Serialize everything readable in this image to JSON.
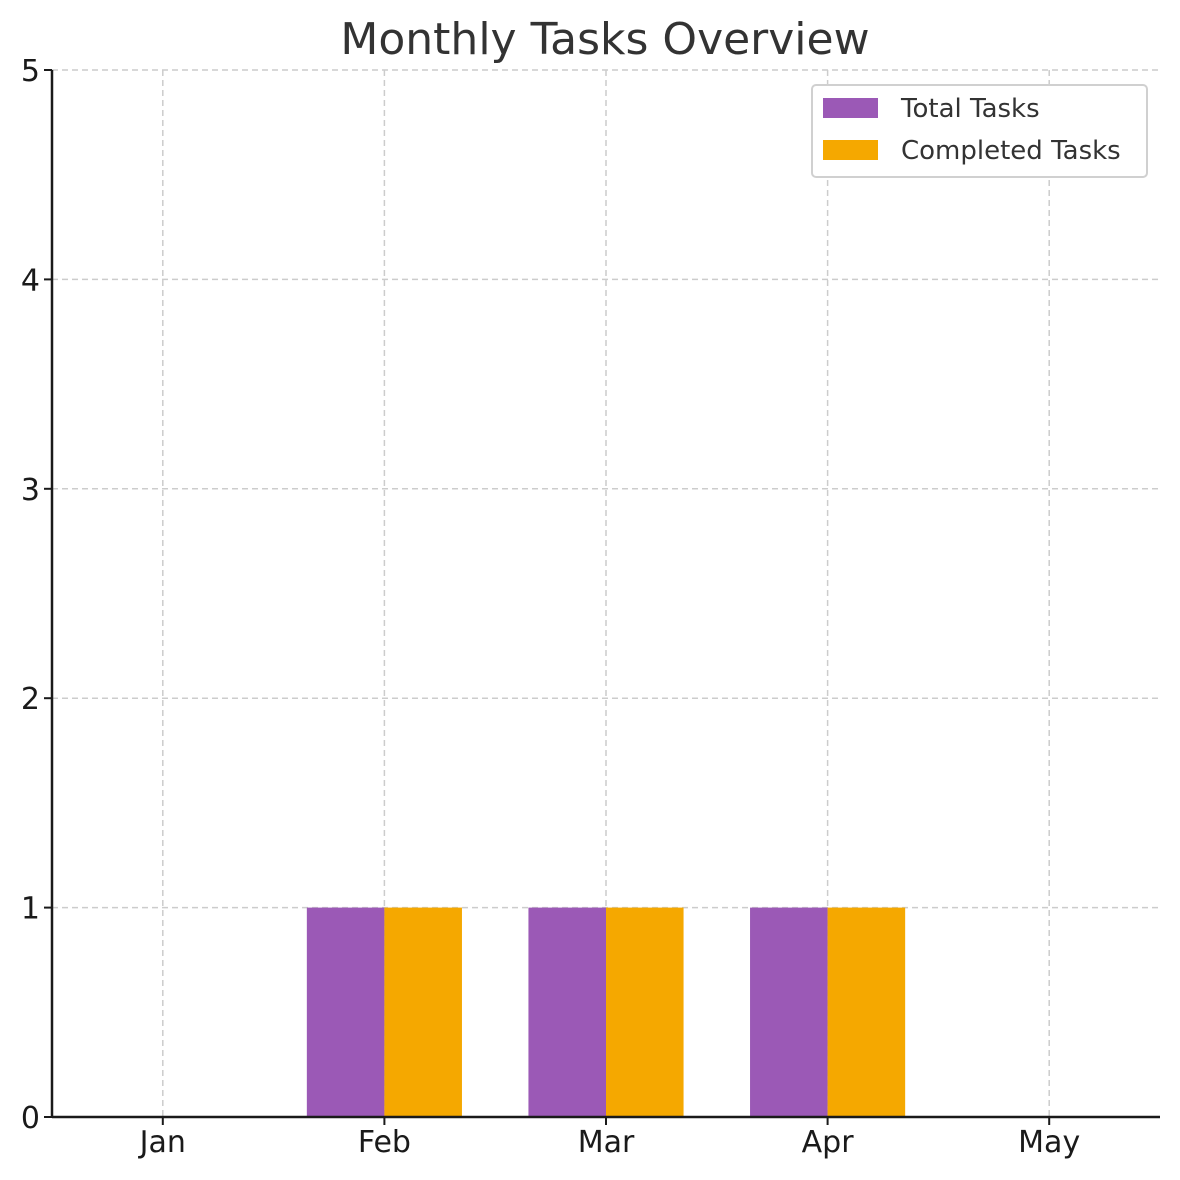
{
  "chart_data": {
    "type": "bar",
    "title": "Monthly Tasks Overview",
    "xlabel": "",
    "ylabel": "",
    "categories": [
      "Jan",
      "Feb",
      "Mar",
      "Apr",
      "May"
    ],
    "series": [
      {
        "name": "Total Tasks",
        "values": [
          0,
          1,
          1,
          1,
          0
        ],
        "color": "#9b59b6"
      },
      {
        "name": "Completed Tasks",
        "values": [
          0,
          1,
          1,
          1,
          0
        ],
        "color": "#f5a800"
      }
    ],
    "ylim": [
      0,
      5
    ],
    "yticks": [
      "0",
      "1",
      "2",
      "3",
      "4",
      "5"
    ],
    "grid": true,
    "legend_position": "top-right"
  }
}
